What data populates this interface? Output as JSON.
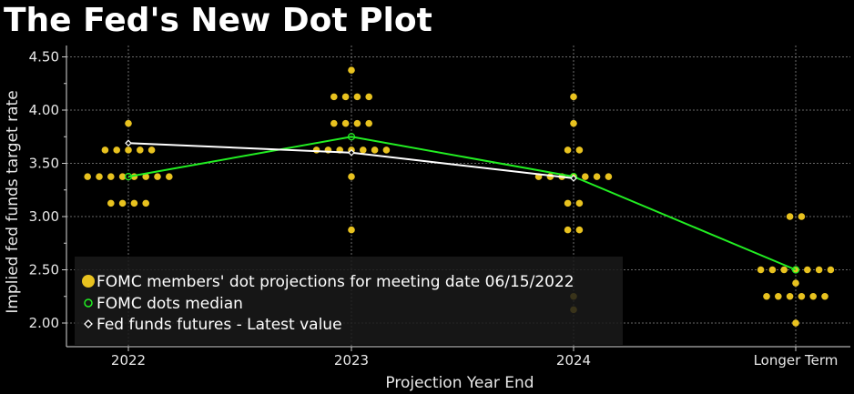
{
  "title": "The Fed's New Dot Plot",
  "chart_data": {
    "type": "scatter",
    "title": "The Fed's New Dot Plot",
    "xlabel": "Projection Year End",
    "ylabel": "Implied fed funds target rate",
    "categories": [
      "2022",
      "2023",
      "2024",
      "Longer Term"
    ],
    "yticks": [
      "2.00",
      "2.50",
      "3.00",
      "3.50",
      "4.00",
      "4.50"
    ],
    "ylim": [
      1.9,
      4.5
    ],
    "grid": true,
    "legend_position": "bottom-left",
    "dots": [
      {
        "category": "2022",
        "y": 3.875,
        "count": 1
      },
      {
        "category": "2022",
        "y": 3.625,
        "count": 5
      },
      {
        "category": "2022",
        "y": 3.375,
        "count": 8
      },
      {
        "category": "2022",
        "y": 3.125,
        "count": 4
      },
      {
        "category": "2023",
        "y": 4.375,
        "count": 1
      },
      {
        "category": "2023",
        "y": 4.125,
        "count": 4
      },
      {
        "category": "2023",
        "y": 3.875,
        "count": 4
      },
      {
        "category": "2023",
        "y": 3.625,
        "count": 7
      },
      {
        "category": "2023",
        "y": 3.375,
        "count": 1
      },
      {
        "category": "2023",
        "y": 2.875,
        "count": 1
      },
      {
        "category": "2024",
        "y": 4.125,
        "count": 1
      },
      {
        "category": "2024",
        "y": 3.875,
        "count": 1
      },
      {
        "category": "2024",
        "y": 3.625,
        "count": 2
      },
      {
        "category": "2024",
        "y": 3.375,
        "count": 7
      },
      {
        "category": "2024",
        "y": 3.125,
        "count": 2
      },
      {
        "category": "2024",
        "y": 2.875,
        "count": 2
      },
      {
        "category": "2024",
        "y": 2.25,
        "count": 1
      },
      {
        "category": "2024",
        "y": 2.125,
        "count": 1
      },
      {
        "category": "Longer Term",
        "y": 3.0,
        "count": 2
      },
      {
        "category": "Longer Term",
        "y": 2.5,
        "count": 7
      },
      {
        "category": "Longer Term",
        "y": 2.375,
        "count": 1
      },
      {
        "category": "Longer Term",
        "y": 2.25,
        "count": 6
      },
      {
        "category": "Longer Term",
        "y": 2.0,
        "count": 1
      }
    ],
    "series": [
      {
        "name": "FOMC dots median",
        "color": "#22ee22",
        "values": [
          3.375,
          3.75,
          3.375,
          2.5
        ]
      },
      {
        "name": "Fed funds futures - Latest value",
        "color": "#ffffff",
        "values": [
          3.69,
          3.6,
          3.36,
          null
        ]
      }
    ],
    "dot_series_name": "FOMC members' dot projections for meeting date 06/15/2022",
    "colors": {
      "dot": "#e8c21f",
      "median": "#22ee22",
      "futures": "#ffffff",
      "grid": "#8a8a8a",
      "background": "#000000"
    }
  }
}
